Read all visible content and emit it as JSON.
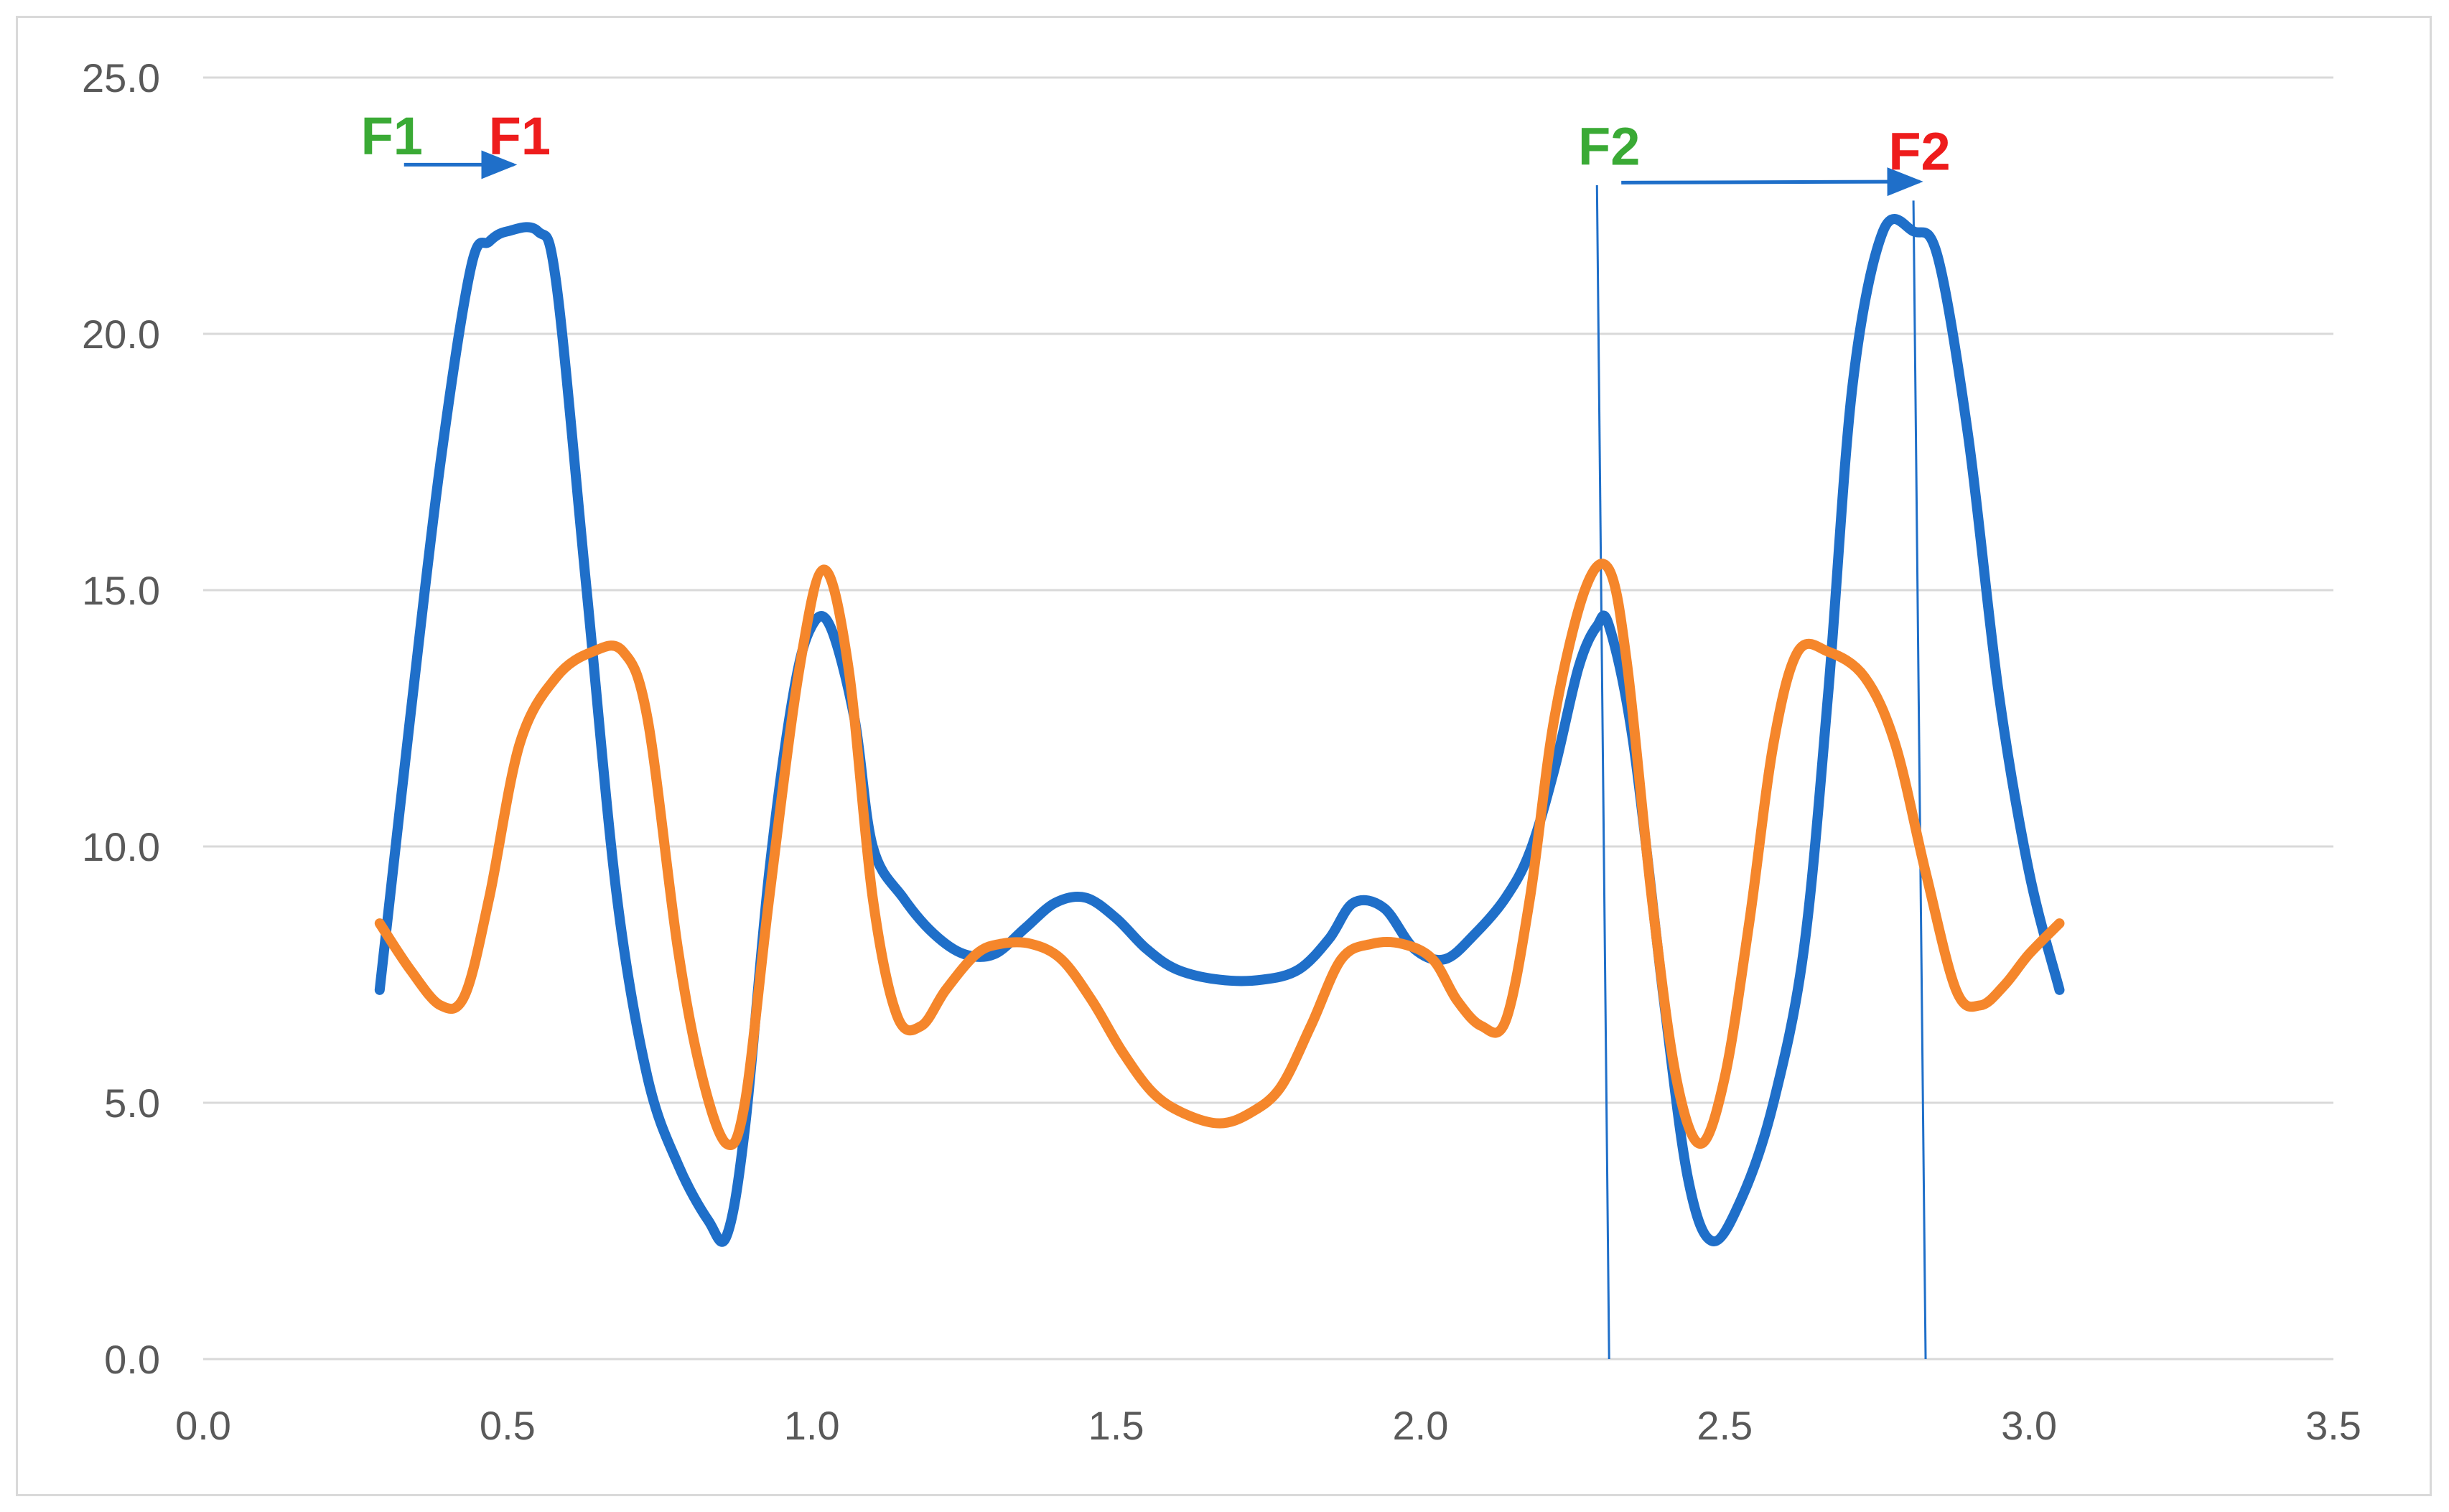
{
  "chart_data": {
    "type": "line",
    "title": "",
    "xlabel": "",
    "ylabel": "",
    "xlim": [
      0,
      3.5
    ],
    "ylim": [
      0,
      25
    ],
    "x_ticks": [
      "0.0",
      "0.5",
      "1.0",
      "1.5",
      "2.0",
      "2.5",
      "3.0",
      "3.5"
    ],
    "y_ticks": [
      "0.0",
      "5.0",
      "10.0",
      "15.0",
      "20.0",
      "25.0"
    ],
    "grid": "horizontal",
    "legend": "none",
    "series": [
      {
        "color": "#1f6fc9",
        "x": [
          0.29,
          0.34,
          0.39,
          0.44,
          0.47,
          0.5,
          0.55,
          0.58,
          0.63,
          0.68,
          0.73,
          0.78,
          0.83,
          0.86,
          0.89,
          0.93,
          0.97,
          1.0,
          1.03,
          1.07,
          1.1,
          1.15,
          1.2,
          1.25,
          1.3,
          1.35,
          1.4,
          1.45,
          1.5,
          1.55,
          1.6,
          1.67,
          1.74,
          1.8,
          1.85,
          1.89,
          1.94,
          1.99,
          2.04,
          2.09,
          2.14,
          2.18,
          2.22,
          2.26,
          2.29,
          2.31,
          2.35,
          2.4,
          2.44,
          2.48,
          2.53,
          2.58,
          2.63,
          2.67,
          2.71,
          2.76,
          2.81,
          2.85,
          2.9,
          2.95,
          3.0,
          3.05
        ],
        "values": [
          7.2,
          12.5,
          17.5,
          21.3,
          21.8,
          22.0,
          22.0,
          21.0,
          15.0,
          9.0,
          5.5,
          3.8,
          2.7,
          2.4,
          4.5,
          9.5,
          13.0,
          14.3,
          14.3,
          12.5,
          10.0,
          9.0,
          8.3,
          7.9,
          7.9,
          8.4,
          8.9,
          9.0,
          8.6,
          8.0,
          7.6,
          7.4,
          7.4,
          7.6,
          8.2,
          8.9,
          8.8,
          8.0,
          7.8,
          8.3,
          9.0,
          9.9,
          11.5,
          13.5,
          14.3,
          14.3,
          12.0,
          7.0,
          3.5,
          2.3,
          3.2,
          5.0,
          8.0,
          13.0,
          19.0,
          22.0,
          22.0,
          21.5,
          18.0,
          13.0,
          9.5,
          7.2
        ]
      },
      {
        "color": "#f5862b",
        "x": [
          0.29,
          0.34,
          0.39,
          0.43,
          0.47,
          0.52,
          0.58,
          0.64,
          0.69,
          0.73,
          0.78,
          0.82,
          0.86,
          0.89,
          0.93,
          0.98,
          1.02,
          1.06,
          1.1,
          1.14,
          1.18,
          1.22,
          1.27,
          1.31,
          1.36,
          1.41,
          1.46,
          1.51,
          1.56,
          1.61,
          1.67,
          1.72,
          1.77,
          1.82,
          1.87,
          1.92,
          1.97,
          2.02,
          2.06,
          2.1,
          2.14,
          2.18,
          2.22,
          2.27,
          2.31,
          2.34,
          2.38,
          2.42,
          2.46,
          2.5,
          2.54,
          2.58,
          2.62,
          2.67,
          2.73,
          2.78,
          2.83,
          2.88,
          2.92,
          2.96,
          3.0,
          3.05
        ],
        "values": [
          8.5,
          7.6,
          6.9,
          7.1,
          9.0,
          12.0,
          13.3,
          13.8,
          13.8,
          12.5,
          8.0,
          5.5,
          4.2,
          5.0,
          9.0,
          13.5,
          15.4,
          13.5,
          9.0,
          6.7,
          6.5,
          7.2,
          7.9,
          8.1,
          8.1,
          7.8,
          7.0,
          6.0,
          5.2,
          4.8,
          4.6,
          4.8,
          5.3,
          6.5,
          7.8,
          8.1,
          8.1,
          7.8,
          7.0,
          6.5,
          6.6,
          9.0,
          12.5,
          15.0,
          15.4,
          13.5,
          9.0,
          5.5,
          4.2,
          5.5,
          8.5,
          12.0,
          13.8,
          13.8,
          13.3,
          12.0,
          9.5,
          7.2,
          6.9,
          7.3,
          7.9,
          8.5
        ]
      }
    ],
    "annotations": [
      {
        "text": "F1",
        "color": "#3aaa35",
        "x": 0.31,
        "y": 23.5
      },
      {
        "text": "F1",
        "color": "#ee1c1c",
        "x": 0.52,
        "y": 23.5
      },
      {
        "text": "F2",
        "color": "#3aaa35",
        "x": 2.31,
        "y": 23.3
      },
      {
        "text": "F2",
        "color": "#ee1c1c",
        "x": 2.82,
        "y": 23.2
      }
    ],
    "arrows": [
      {
        "x1": 0.33,
        "y1": 23.3,
        "x2": 0.51,
        "y2": 23.3,
        "color": "#1f6fc9"
      },
      {
        "x1": 2.33,
        "y1": 22.95,
        "x2": 2.82,
        "y2": 22.97,
        "color": "#1f6fc9"
      }
    ],
    "guide_lines": [
      {
        "x1": 2.29,
        "y1": 22.9,
        "x2": 2.31,
        "y2": 0,
        "color": "#1f6fc9"
      },
      {
        "x1": 2.81,
        "y1": 22.6,
        "x2": 2.83,
        "y2": 0,
        "color": "#1f6fc9"
      }
    ]
  }
}
